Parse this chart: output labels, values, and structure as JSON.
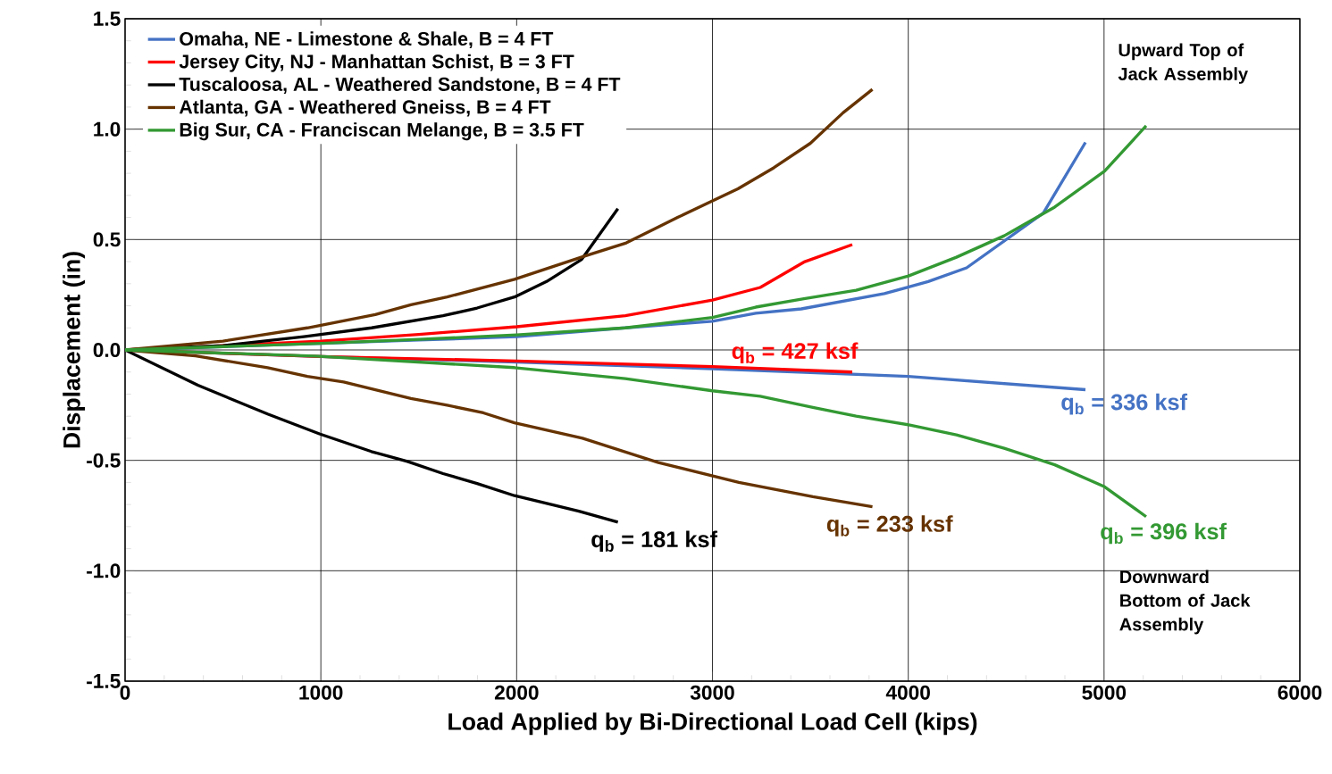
{
  "chart_data": {
    "type": "line",
    "xlabel": "Load Applied by Bi-Directional Load Cell (kips)",
    "ylabel": "Displacement (in)",
    "xlim": [
      0,
      6000
    ],
    "ylim": [
      -1.5,
      1.5
    ],
    "xticks": [
      0,
      1000,
      2000,
      3000,
      4000,
      5000,
      6000
    ],
    "yticks": [
      -1.5,
      {
        "value": -1,
        "label": "-1.0"
      },
      -0.5,
      {
        "value": 0,
        "label": "0.0"
      },
      0.5,
      {
        "value": 1,
        "label": "1.0"
      },
      1.5
    ],
    "grid": true,
    "legend": "top left",
    "marker": "none",
    "line_style": "solid",
    "series": [
      {
        "name": "Omaha, NE - Limestone & Shale, B = 4 FT",
        "color": "#4472c4",
        "x": [
          0,
          500,
          1000,
          1500,
          2000,
          2555,
          3000,
          3221,
          3454,
          3878,
          4102,
          4298,
          4690,
          4905
        ],
        "values": [
          0,
          0.015,
          0.03,
          0.045,
          0.06,
          0.1,
          0.13,
          0.166,
          0.186,
          0.255,
          0.31,
          0.372,
          0.62,
          0.94
        ]
      },
      {
        "color": "#4472c4",
        "x": [
          0,
          1000,
          2000,
          3000,
          4000,
          4905
        ],
        "values": [
          0,
          -0.03,
          -0.055,
          -0.085,
          -0.12,
          -0.18
        ]
      },
      {
        "name": "Jersey City, NJ - Manhattan Schist, B = 3 FT",
        "color": "#ff0000",
        "x": [
          0,
          500,
          1000,
          1500,
          2000,
          2555,
          3000,
          3244,
          3472,
          3714
        ],
        "values": [
          0,
          0.02,
          0.04,
          0.07,
          0.105,
          0.155,
          0.226,
          0.283,
          0.4,
          0.477
        ]
      },
      {
        "color": "#ff0000",
        "x": [
          0,
          1000,
          2000,
          3000,
          3714
        ],
        "values": [
          0,
          -0.03,
          -0.05,
          -0.075,
          -0.1
        ]
      },
      {
        "name": "Tuscaloosa, AL - Weathered Sandstone, B = 4 FT",
        "color": "#000000",
        "x": [
          0,
          500,
          913,
          1259,
          1624,
          1798,
          1989,
          2153,
          2332,
          2517
        ],
        "values": [
          0,
          0.02,
          0.06,
          0.1,
          0.155,
          0.19,
          0.24,
          0.31,
          0.41,
          0.64
        ]
      },
      {
        "color": "#000000",
        "x": [
          0,
          372,
          728,
          993,
          1258,
          1442,
          1624,
          1798,
          1989,
          2318,
          2517
        ],
        "values": [
          0,
          -0.16,
          -0.29,
          -0.38,
          -0.46,
          -0.505,
          -0.56,
          -0.605,
          -0.66,
          -0.73,
          -0.78
        ]
      },
      {
        "name": "Atlanta, GA - Weathered Gneiss, B = 4 FT",
        "color": "#663300",
        "x": [
          0,
          500,
          931,
          1278,
          1460,
          1645,
          1989,
          2347,
          2560,
          2822,
          3000,
          3130,
          3313,
          3500,
          3668,
          3817
        ],
        "values": [
          0,
          0.04,
          0.1,
          0.16,
          0.205,
          0.24,
          0.32,
          0.425,
          0.485,
          0.6,
          0.675,
          0.73,
          0.825,
          0.936,
          1.075,
          1.18
        ]
      },
      {
        "color": "#663300",
        "x": [
          0,
          360,
          728,
          931,
          1116,
          1460,
          1645,
          1830,
          1989,
          2336,
          2724,
          3135,
          3513,
          3817
        ],
        "values": [
          0,
          -0.027,
          -0.08,
          -0.12,
          -0.145,
          -0.22,
          -0.25,
          -0.285,
          -0.33,
          -0.4,
          -0.51,
          -0.6,
          -0.665,
          -0.71
        ]
      },
      {
        "name": "Big Sur, CA - Franciscan Melange, B = 3.5 FT",
        "color": "#339933",
        "x": [
          0,
          500,
          1000,
          1500,
          2000,
          2555,
          3000,
          3221,
          3467,
          3734,
          4001,
          4246,
          4490,
          4748,
          5003,
          5215
        ],
        "values": [
          0,
          0.015,
          0.03,
          0.048,
          0.068,
          0.1,
          0.147,
          0.194,
          0.232,
          0.27,
          0.335,
          0.42,
          0.517,
          0.647,
          0.81,
          1.015
        ]
      },
      {
        "color": "#339933",
        "x": [
          0,
          972,
          1989,
          2555,
          3000,
          3244,
          3513,
          3734,
          4008,
          4246,
          4490,
          4748,
          5003,
          5215
        ],
        "values": [
          0,
          -0.028,
          -0.08,
          -0.13,
          -0.185,
          -0.21,
          -0.26,
          -0.3,
          -0.34,
          -0.385,
          -0.445,
          -0.52,
          -0.62,
          -0.755
        ]
      }
    ],
    "annotations": [
      {
        "text": "q$_{b}$ = 427 ksf",
        "x": 3714,
        "y": -0.1
      },
      {
        "text": "q$_{b}$ = 336 ksf",
        "x": 4905,
        "y": -0.18
      },
      {
        "text": "q$_{b}$ = 181 ksf",
        "x": 2517,
        "y": -0.78
      },
      {
        "text": "q$_{b}$ = 233 ksf",
        "x": 3817,
        "y": -0.71
      },
      {
        "text": "q$_{b}$ = 396 ksf",
        "x": 5215,
        "y": -0.755
      },
      "Upward Top of Jack Assembly",
      "Downward Bottom of Jack Assembly"
    ]
  }
}
